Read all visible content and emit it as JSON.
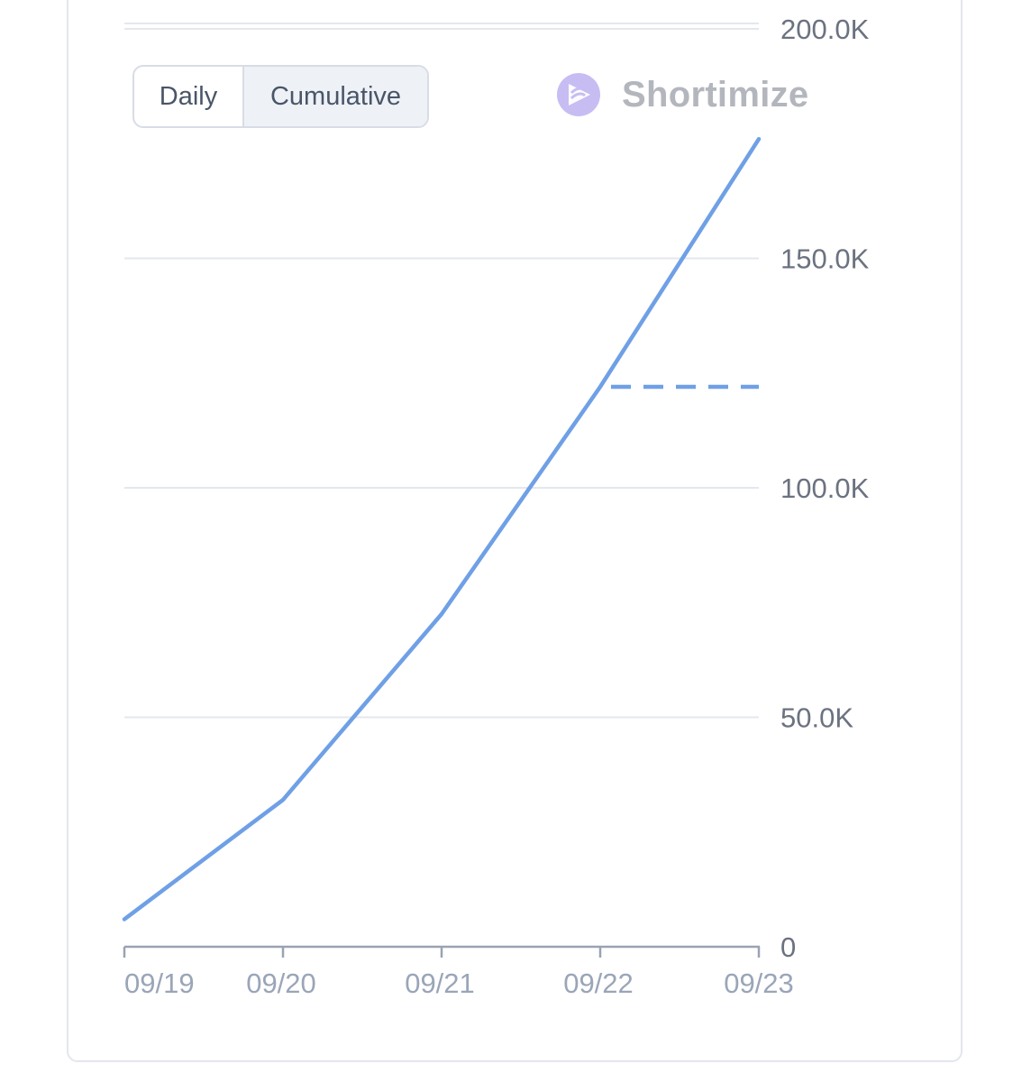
{
  "toggle": {
    "daily_label": "Daily",
    "cumulative_label": "Cumulative",
    "selected": "Cumulative"
  },
  "brand": {
    "name": "Shortimize"
  },
  "colors": {
    "line": "#6fa0e6",
    "grid": "#e4e7ee",
    "tick_label": "#6b7280",
    "x_tick_label": "#9aa5b8",
    "axis": "#9aa3b2"
  },
  "chart_data": {
    "type": "line",
    "x": [
      "09/19",
      "09/20",
      "09/21",
      "09/22",
      "09/23"
    ],
    "series": [
      {
        "values": [
          6000,
          32000,
          72500,
          122000,
          176000
        ],
        "style": "solid"
      }
    ],
    "reference_line": {
      "value": 122000,
      "from": "09/22",
      "to": "09/23",
      "style": "dashed"
    },
    "y_ticks": [
      "0",
      "50.0K",
      "100.0K",
      "150.0K",
      "200.0K"
    ],
    "y_tick_values": [
      0,
      50000,
      100000,
      150000,
      200000
    ],
    "ylim": [
      0,
      200000
    ],
    "y_axis_side": "right",
    "grid": true,
    "title": "",
    "xlabel": "",
    "ylabel": ""
  }
}
